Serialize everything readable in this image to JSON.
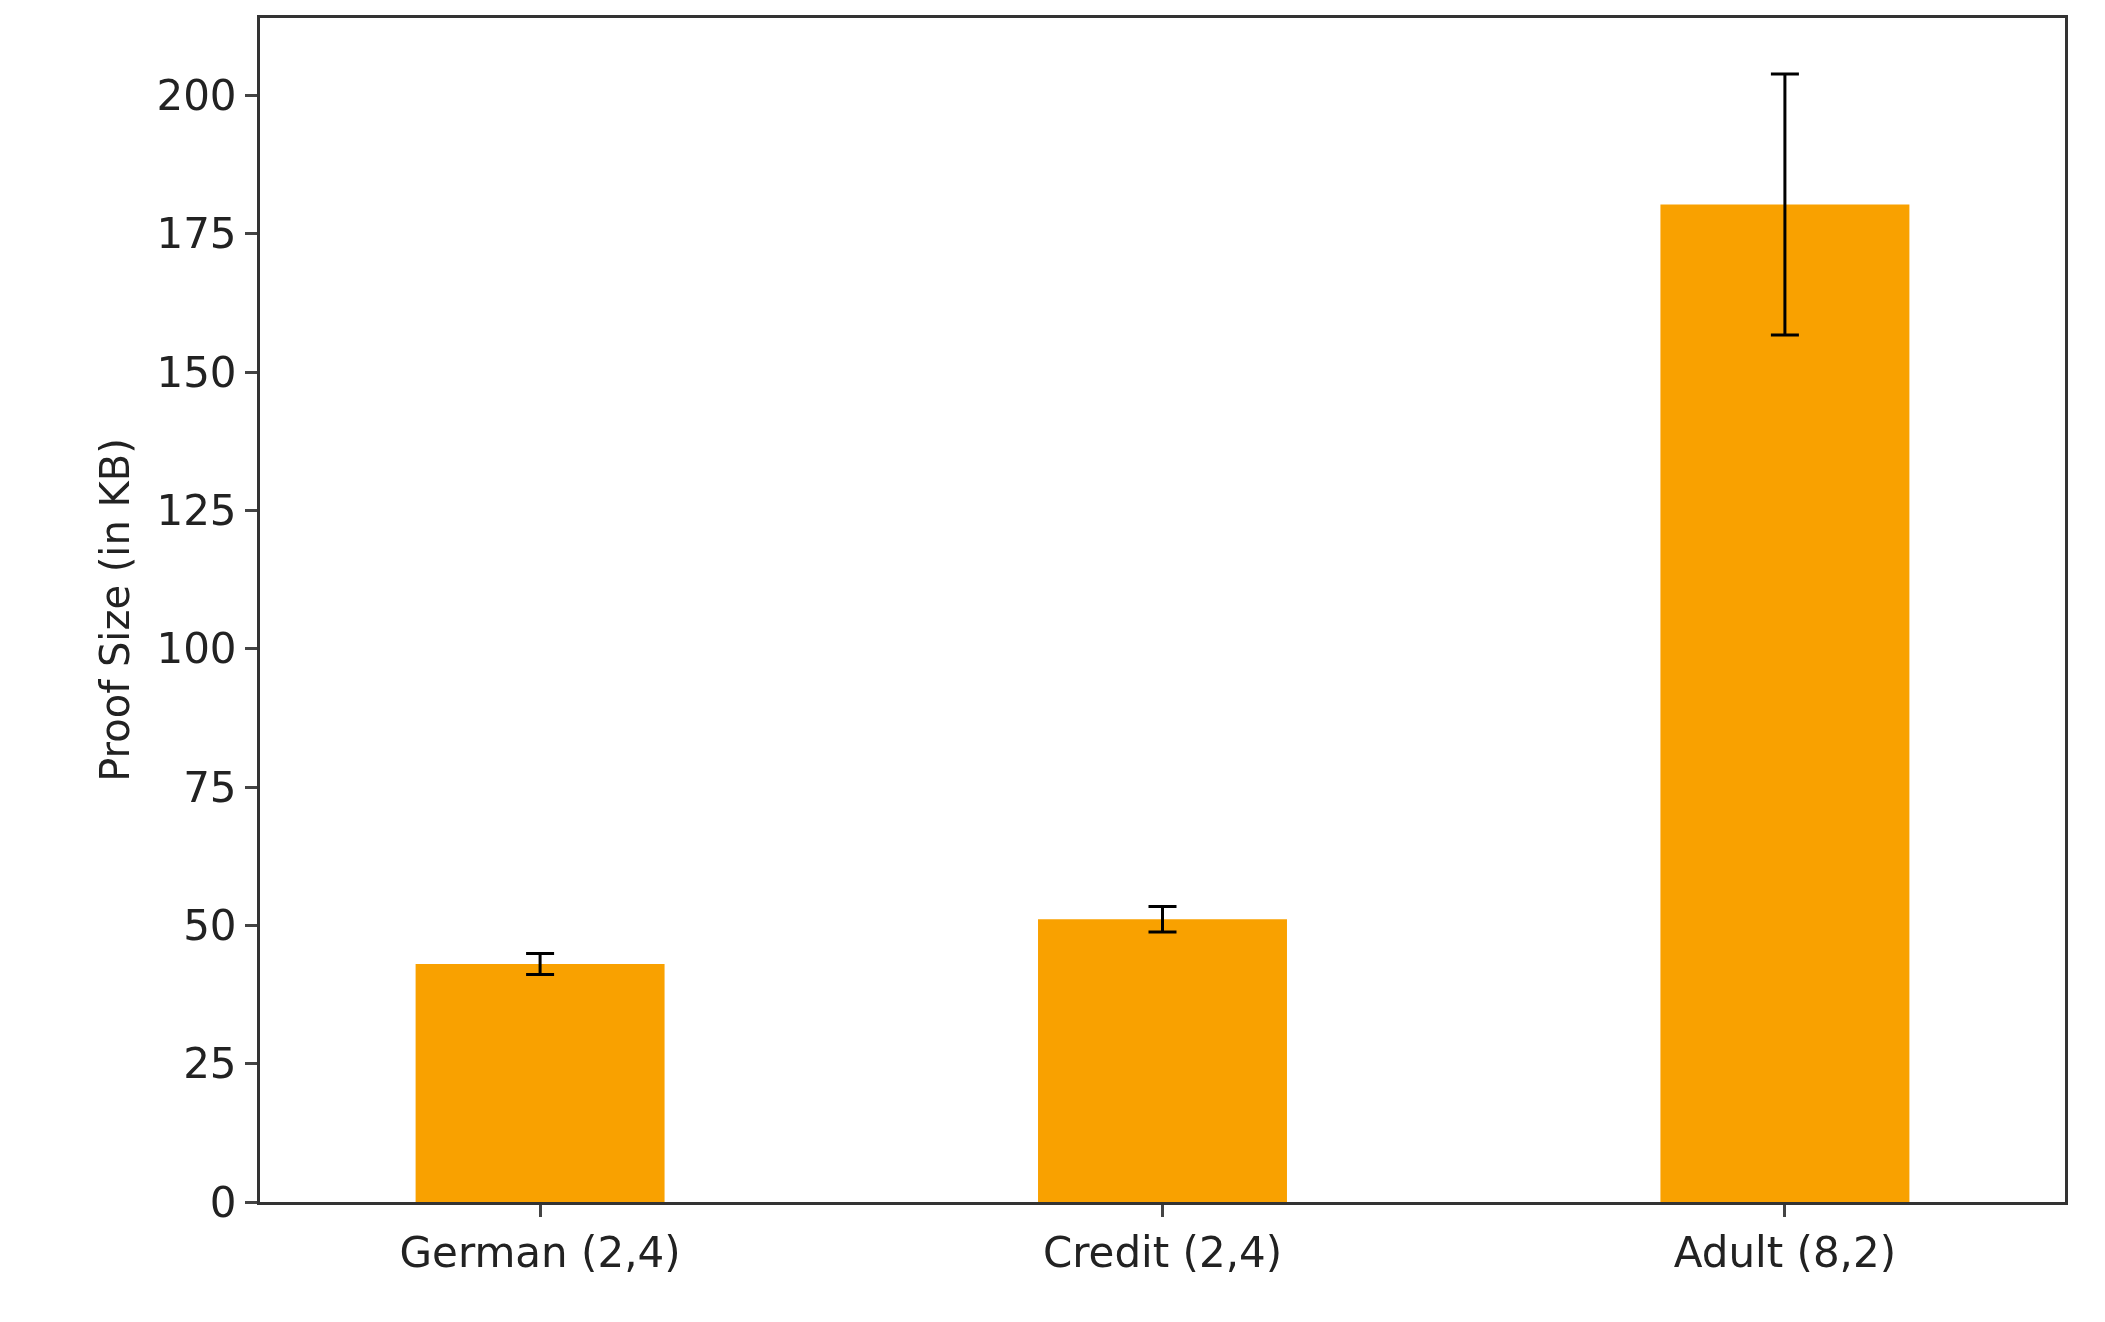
{
  "chart_data": {
    "type": "bar",
    "ylabel": "Proof Size (in KB)",
    "categories": [
      "German (2,4)",
      "Credit (2,4)",
      "Adult (8,2)"
    ],
    "values": [
      43.0,
      51.1,
      180.3
    ],
    "errors": [
      1.9,
      2.3,
      23.6
    ],
    "color": "#f9a100",
    "ylim": [
      0,
      214
    ],
    "yticks": [
      0,
      25,
      50,
      75,
      100,
      125,
      150,
      175,
      200
    ]
  }
}
